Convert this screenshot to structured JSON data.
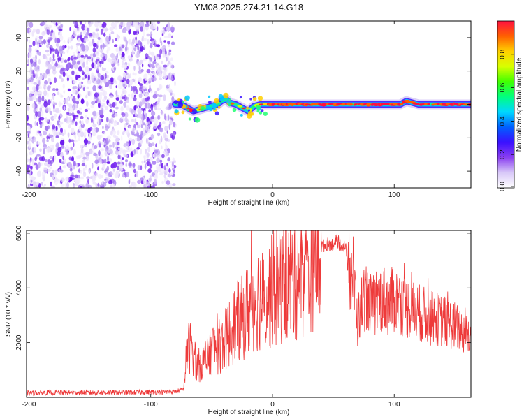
{
  "title": "YM08.2025.274.21.14.G18",
  "chart_data": [
    {
      "type": "heatmap",
      "panel": "spectrogram",
      "xlabel": "Height of straight line (km)",
      "ylabel": "Frequency (Hz)",
      "xlim": [
        -202,
        163
      ],
      "ylim": [
        -50,
        50
      ],
      "xticks": [
        -200,
        -100,
        0,
        100
      ],
      "yticks": [
        -40,
        -20,
        0,
        20,
        40
      ],
      "noise_region_x": [
        -202,
        -80
      ],
      "signal_ridge": [
        {
          "x": -80,
          "y": 0
        },
        {
          "x": -75,
          "y": 0
        },
        {
          "x": -70,
          "y": -2
        },
        {
          "x": -65,
          "y": -4
        },
        {
          "x": -60,
          "y": -3
        },
        {
          "x": -55,
          "y": -2
        },
        {
          "x": -50,
          "y": -1
        },
        {
          "x": -45,
          "y": 0
        },
        {
          "x": -42,
          "y": 2
        },
        {
          "x": -38,
          "y": 3
        },
        {
          "x": -35,
          "y": 1
        },
        {
          "x": -30,
          "y": 0
        },
        {
          "x": -25,
          "y": -2
        },
        {
          "x": -20,
          "y": -4
        },
        {
          "x": -15,
          "y": -1
        },
        {
          "x": -10,
          "y": 0
        },
        {
          "x": 0,
          "y": 0
        },
        {
          "x": 30,
          "y": 0
        },
        {
          "x": 80,
          "y": 0
        },
        {
          "x": 105,
          "y": 0
        },
        {
          "x": 110,
          "y": 2
        },
        {
          "x": 120,
          "y": 0
        },
        {
          "x": 163,
          "y": 0
        }
      ],
      "colorbar": {
        "label": "Normalized spectral amplitude",
        "range": [
          0,
          1
        ],
        "ticks": [
          "0.0",
          "0.2",
          "0.4",
          "0.6",
          "0.8"
        ],
        "colors": [
          "#ffffff",
          "#d8c8f8",
          "#8a3ff0",
          "#3a10ff",
          "#0060ff",
          "#00d8ff",
          "#00ff80",
          "#40ff00",
          "#d8ff00",
          "#ffd000",
          "#ff6000",
          "#ff1040"
        ]
      }
    },
    {
      "type": "line",
      "panel": "snr",
      "xlabel": "Height of straight line (km)",
      "ylabel": "SNR (10 * v/v)",
      "xlim": [
        -202,
        163
      ],
      "ylim": [
        0,
        6100
      ],
      "xticks": [
        -200,
        -100,
        0,
        100
      ],
      "yticks": [
        2000,
        4000,
        6000
      ],
      "color": "#ee3a3a",
      "series": [
        {
          "name": "SNR",
          "x": [
            -202,
            -180,
            -150,
            -120,
            -100,
            -80,
            -73,
            -70,
            -66,
            -62,
            -58,
            -54,
            -50,
            -45,
            -40,
            -35,
            -30,
            -25,
            -20,
            -15,
            -10,
            -5,
            0,
            5,
            10,
            15,
            20,
            25,
            30,
            35,
            40,
            45,
            50,
            55,
            60,
            63,
            66,
            70,
            72,
            75,
            80,
            85,
            90,
            95,
            100,
            110,
            120,
            130,
            140,
            150,
            163
          ],
          "y": [
            150,
            180,
            170,
            180,
            190,
            200,
            300,
            1800,
            1900,
            1100,
            1300,
            1300,
            1800,
            1800,
            2000,
            2400,
            2700,
            2900,
            3200,
            3600,
            3700,
            3600,
            3900,
            4100,
            4200,
            4300,
            4500,
            4700,
            5000,
            5400,
            5500,
            5600,
            5600,
            5600,
            5500,
            4400,
            4600,
            2700,
            3200,
            3700,
            3400,
            3300,
            3700,
            3400,
            3600,
            3300,
            3100,
            2900,
            2800,
            2600,
            2200
          ]
        }
      ]
    }
  ]
}
